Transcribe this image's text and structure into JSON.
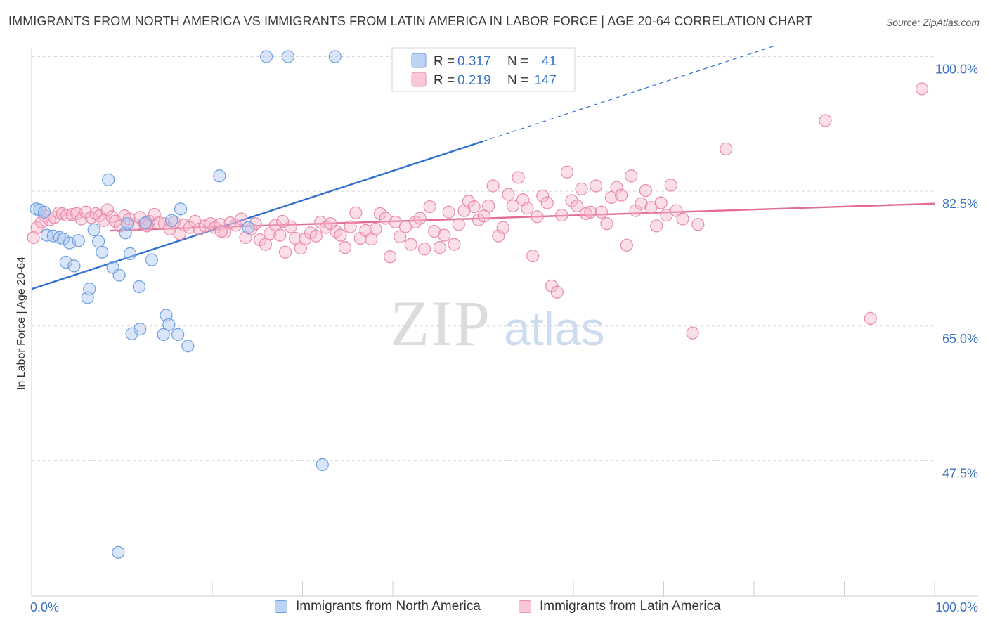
{
  "title": "IMMIGRANTS FROM NORTH AMERICA VS IMMIGRANTS FROM LATIN AMERICA IN LABOR FORCE | AGE 20-64 CORRELATION CHART",
  "source": "Source: ZipAtlas.com",
  "watermark": {
    "zip": "ZIP",
    "atlas": "atlas"
  },
  "colors": {
    "blue_fill": "#aac7f2",
    "blue_stroke": "#6f9ee0",
    "blue_line": "#2f6fcf",
    "pink_fill": "#f6b8cb",
    "pink_stroke": "#e98aa9",
    "pink_line": "#e46b93",
    "axis_label": "#3b73c7",
    "grid": "#d8d8d8"
  },
  "legend": {
    "r_label": "R =",
    "n_label": "N =",
    "rows": [
      {
        "r": "0.317",
        "n": "41"
      },
      {
        "r": "0.219",
        "n": "147"
      }
    ]
  },
  "chart_data": {
    "type": "scatter",
    "title": "IMMIGRANTS FROM NORTH AMERICA VS IMMIGRANTS FROM LATIN AMERICA IN LABOR FORCE | AGE 20-64 CORRELATION CHART",
    "xlabel": "",
    "ylabel": "In Labor Force | Age 20-64",
    "xlim": [
      0,
      100
    ],
    "ylim": [
      30,
      100
    ],
    "x_tick_labels": [
      "0.0%",
      "100.0%"
    ],
    "y_ticks": [
      47.5,
      65.0,
      82.5,
      100.0
    ],
    "y_tick_labels": [
      "47.5%",
      "65.0%",
      "82.5%",
      "100.0%"
    ],
    "grid": "horizontal dashed",
    "legend_position": "top-center",
    "series": [
      {
        "name": "Immigrants from North America",
        "r": 0.317,
        "n": 41,
        "trend": {
          "x0": 0,
          "y0": 69.8,
          "x1": 50,
          "y1": 89.0,
          "dashed_to": [
            100,
            108.0
          ]
        },
        "points": [
          [
            0.5,
            80.2
          ],
          [
            0.9,
            80.1
          ],
          [
            1.4,
            79.8
          ],
          [
            1.7,
            76.8
          ],
          [
            2.4,
            76.7
          ],
          [
            3.1,
            76.5
          ],
          [
            3.5,
            76.3
          ],
          [
            4.2,
            75.8
          ],
          [
            3.8,
            73.3
          ],
          [
            4.7,
            72.8
          ],
          [
            5.2,
            76.1
          ],
          [
            6.9,
            77.5
          ],
          [
            7.4,
            76.0
          ],
          [
            7.8,
            74.6
          ],
          [
            8.5,
            84.0
          ],
          [
            9.0,
            72.6
          ],
          [
            9.7,
            71.6
          ],
          [
            10.4,
            77.1
          ],
          [
            10.9,
            74.4
          ],
          [
            11.9,
            70.1
          ],
          [
            12.6,
            78.4
          ],
          [
            13.3,
            73.6
          ],
          [
            11.1,
            64.0
          ],
          [
            12.0,
            64.6
          ],
          [
            6.2,
            68.7
          ],
          [
            6.4,
            69.8
          ],
          [
            14.9,
            66.4
          ],
          [
            15.2,
            65.2
          ],
          [
            14.6,
            63.9
          ],
          [
            16.5,
            80.2
          ],
          [
            16.2,
            63.9
          ],
          [
            17.3,
            62.4
          ],
          [
            20.8,
            84.5
          ],
          [
            24.0,
            77.8
          ],
          [
            26.0,
            100.0
          ],
          [
            28.4,
            100.0
          ],
          [
            33.6,
            100.0
          ],
          [
            10.6,
            78.3
          ],
          [
            15.5,
            78.7
          ],
          [
            32.2,
            47.0
          ],
          [
            9.6,
            35.6
          ]
        ]
      },
      {
        "name": "Immigrants from Latin America",
        "r": 0.219,
        "n": 147,
        "trend": {
          "x0": 8.7,
          "y0": 77.4,
          "x1": 100,
          "y1": 80.9
        },
        "points": [
          [
            0.2,
            76.5
          ],
          [
            0.6,
            77.8
          ],
          [
            1.1,
            78.5
          ],
          [
            1.5,
            79.3
          ],
          [
            2.0,
            78.8
          ],
          [
            2.5,
            79.1
          ],
          [
            3.0,
            79.7
          ],
          [
            3.4,
            79.6
          ],
          [
            3.9,
            79.4
          ],
          [
            4.5,
            79.5
          ],
          [
            5.0,
            79.6
          ],
          [
            5.5,
            78.9
          ],
          [
            6.0,
            79.8
          ],
          [
            6.6,
            79.1
          ],
          [
            7.1,
            79.6
          ],
          [
            7.5,
            79.3
          ],
          [
            8.0,
            78.7
          ],
          [
            8.4,
            80.1
          ],
          [
            8.9,
            79.2
          ],
          [
            9.3,
            78.6
          ],
          [
            9.8,
            78.0
          ],
          [
            10.3,
            79.3
          ],
          [
            10.8,
            78.9
          ],
          [
            11.4,
            78.2
          ],
          [
            12.0,
            79.1
          ],
          [
            12.5,
            78.3
          ],
          [
            13.0,
            78.6
          ],
          [
            13.6,
            79.5
          ],
          [
            14.1,
            78.4
          ],
          [
            14.7,
            78.3
          ],
          [
            15.3,
            77.6
          ],
          [
            15.8,
            78.5
          ],
          [
            16.4,
            77.0
          ],
          [
            16.9,
            78.1
          ],
          [
            17.5,
            77.8
          ],
          [
            18.1,
            78.6
          ],
          [
            18.6,
            77.6
          ],
          [
            19.2,
            78.0
          ],
          [
            19.8,
            78.3
          ],
          [
            20.3,
            77.8
          ],
          [
            20.9,
            78.2
          ],
          [
            21.4,
            77.2
          ],
          [
            22.0,
            78.4
          ],
          [
            22.6,
            78.1
          ],
          [
            23.2,
            78.9
          ],
          [
            23.7,
            76.5
          ],
          [
            24.3,
            77.6
          ],
          [
            24.8,
            78.3
          ],
          [
            25.3,
            76.2
          ],
          [
            25.9,
            75.6
          ],
          [
            26.4,
            77.0
          ],
          [
            27.0,
            78.1
          ],
          [
            27.5,
            76.8
          ],
          [
            28.1,
            74.6
          ],
          [
            28.7,
            77.9
          ],
          [
            29.2,
            76.4
          ],
          [
            29.8,
            75.1
          ],
          [
            30.3,
            76.3
          ],
          [
            30.9,
            77.1
          ],
          [
            31.5,
            76.7
          ],
          [
            32.0,
            78.5
          ],
          [
            32.6,
            77.8
          ],
          [
            33.1,
            78.3
          ],
          [
            33.7,
            77.3
          ],
          [
            34.2,
            76.8
          ],
          [
            34.7,
            75.2
          ],
          [
            35.3,
            77.9
          ],
          [
            35.9,
            79.7
          ],
          [
            36.4,
            76.4
          ],
          [
            37.0,
            77.4
          ],
          [
            37.6,
            76.3
          ],
          [
            38.1,
            77.6
          ],
          [
            38.6,
            79.6
          ],
          [
            39.2,
            79.0
          ],
          [
            39.7,
            74.0
          ],
          [
            40.3,
            78.5
          ],
          [
            40.8,
            76.6
          ],
          [
            41.4,
            77.9
          ],
          [
            42.0,
            75.6
          ],
          [
            42.5,
            78.5
          ],
          [
            43.0,
            79.0
          ],
          [
            43.5,
            75.0
          ],
          [
            44.1,
            80.5
          ],
          [
            44.6,
            77.3
          ],
          [
            45.2,
            75.2
          ],
          [
            45.7,
            76.8
          ],
          [
            46.2,
            79.8
          ],
          [
            46.8,
            75.6
          ],
          [
            47.3,
            78.2
          ],
          [
            47.9,
            80.0
          ],
          [
            48.4,
            81.2
          ],
          [
            49.0,
            80.5
          ],
          [
            49.5,
            78.8
          ],
          [
            50.1,
            79.3
          ],
          [
            50.6,
            80.6
          ],
          [
            51.1,
            83.2
          ],
          [
            51.7,
            76.7
          ],
          [
            52.2,
            77.8
          ],
          [
            52.8,
            82.1
          ],
          [
            53.3,
            80.6
          ],
          [
            53.9,
            84.3
          ],
          [
            54.4,
            81.4
          ],
          [
            54.9,
            80.3
          ],
          [
            55.5,
            74.1
          ],
          [
            56.0,
            79.2
          ],
          [
            56.6,
            81.9
          ],
          [
            57.1,
            81.0
          ],
          [
            57.6,
            70.2
          ],
          [
            58.2,
            69.4
          ],
          [
            58.7,
            79.4
          ],
          [
            59.3,
            85.0
          ],
          [
            59.8,
            81.3
          ],
          [
            60.4,
            80.6
          ],
          [
            60.9,
            82.8
          ],
          [
            61.4,
            79.6
          ],
          [
            61.9,
            79.8
          ],
          [
            62.5,
            83.2
          ],
          [
            63.1,
            79.8
          ],
          [
            63.7,
            78.3
          ],
          [
            64.2,
            81.7
          ],
          [
            64.8,
            83.0
          ],
          [
            65.3,
            82.0
          ],
          [
            65.9,
            75.5
          ],
          [
            66.4,
            84.5
          ],
          [
            66.9,
            80.0
          ],
          [
            67.5,
            80.9
          ],
          [
            68.0,
            82.6
          ],
          [
            68.6,
            80.4
          ],
          [
            69.2,
            78.0
          ],
          [
            69.7,
            81.0
          ],
          [
            70.3,
            79.4
          ],
          [
            70.8,
            83.3
          ],
          [
            71.4,
            80.0
          ],
          [
            72.1,
            78.9
          ],
          [
            73.2,
            64.1
          ],
          [
            73.8,
            78.2
          ],
          [
            76.9,
            88.0
          ],
          [
            98.6,
            95.8
          ],
          [
            87.9,
            91.7
          ],
          [
            92.9,
            66.0
          ],
          [
            21.0,
            77.3
          ],
          [
            12.8,
            78.0
          ],
          [
            27.8,
            78.6
          ]
        ]
      }
    ]
  },
  "bottom_legend": [
    {
      "label": "Immigrants from North America"
    },
    {
      "label": "Immigrants from Latin America"
    }
  ]
}
